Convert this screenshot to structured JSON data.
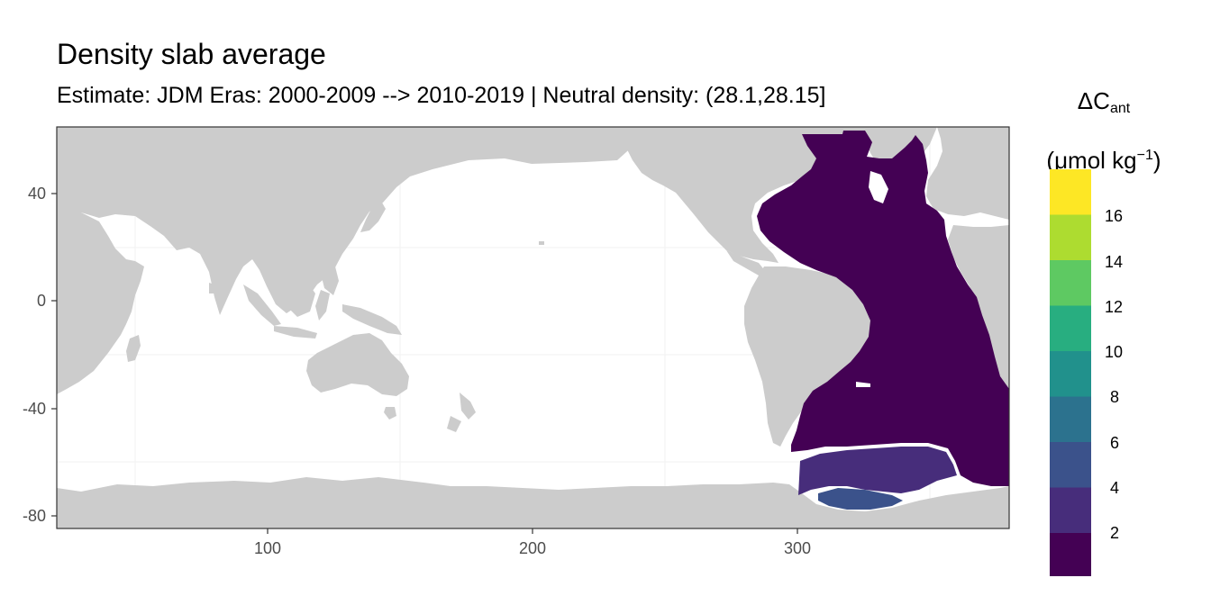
{
  "plot": {
    "title": "Density slab average",
    "subtitle": "Estimate: JDM Eras: 2000-2009 --> 2010-2019 | Neutral density: (28.1,28.15]"
  },
  "map_data": {
    "x_axis": {
      "ticks": [
        100,
        200,
        300
      ],
      "range": [
        21,
        380
      ]
    },
    "y_axis": {
      "ticks": [
        40,
        0,
        -40,
        -80
      ],
      "range": [
        -84,
        64
      ]
    },
    "land_color": "#cccccc",
    "ocean_color": "#ffffff",
    "grid_color": "#ebebeb"
  },
  "legend": {
    "title_main": "ΔC",
    "title_sub": "ant",
    "unit_main": "(μmol kg",
    "unit_sup": "−1",
    "unit_end": ")",
    "bins": [
      {
        "label": "",
        "color": "#440154"
      },
      {
        "label": "2",
        "color": "#472d7b"
      },
      {
        "label": "4",
        "color": "#3b528b"
      },
      {
        "label": "6",
        "color": "#2c728e"
      },
      {
        "label": "8",
        "color": "#21918c"
      },
      {
        "label": "10",
        "color": "#28ae80"
      },
      {
        "label": "12",
        "color": "#5ec962"
      },
      {
        "label": "14",
        "color": "#addc30"
      },
      {
        "label": "16",
        "color": "#fde725"
      }
    ]
  }
}
